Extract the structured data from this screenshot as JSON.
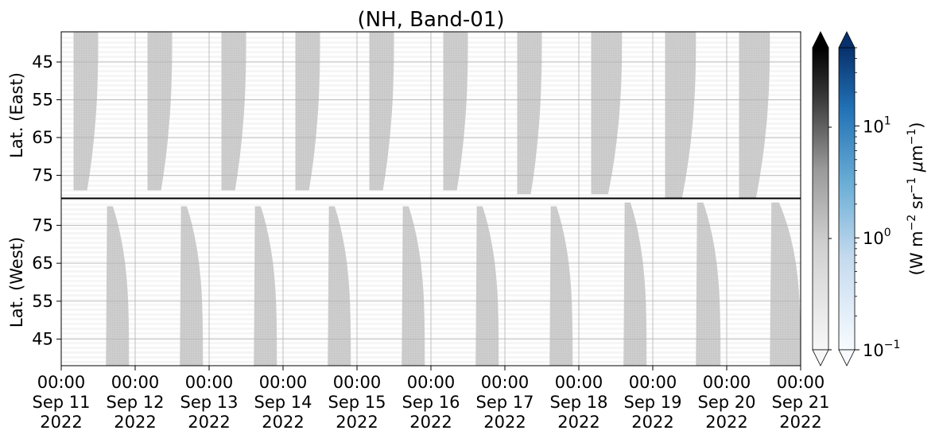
{
  "chart_data": {
    "type": "heatmap",
    "title": "(NH, Band-01)",
    "panels": [
      {
        "name": "east",
        "ylabel": "Lat. (East)",
        "y_ticks": [
          45,
          55,
          65,
          75
        ],
        "ylim": [
          37,
          81
        ],
        "y_inverted": true
      },
      {
        "name": "west",
        "ylabel": "Lat. (West)",
        "y_ticks": [
          75,
          65,
          55,
          45
        ],
        "ylim": [
          38,
          82
        ],
        "y_inverted": false
      }
    ],
    "x_ticks": [
      {
        "time": "00:00",
        "date": "Sep 11",
        "year": "2022"
      },
      {
        "time": "00:00",
        "date": "Sep 12",
        "year": "2022"
      },
      {
        "time": "00:00",
        "date": "Sep 13",
        "year": "2022"
      },
      {
        "time": "00:00",
        "date": "Sep 14",
        "year": "2022"
      },
      {
        "time": "00:00",
        "date": "Sep 15",
        "year": "2022"
      },
      {
        "time": "00:00",
        "date": "Sep 16",
        "year": "2022"
      },
      {
        "time": "00:00",
        "date": "Sep 17",
        "year": "2022"
      },
      {
        "time": "00:00",
        "date": "Sep 18",
        "year": "2022"
      },
      {
        "time": "00:00",
        "date": "Sep 19",
        "year": "2022"
      },
      {
        "time": "00:00",
        "date": "Sep 20",
        "year": "2022"
      },
      {
        "time": "00:00",
        "date": "Sep 21",
        "year": "2022"
      }
    ],
    "xlim": [
      "2022-09-11 00:00",
      "2022-09-21 00:00"
    ],
    "grid": true,
    "east_swaths": [
      {
        "start": "2022-09-11 04:00",
        "end": "2022-09-11 12:00",
        "min_lat": 79
      },
      {
        "start": "2022-09-12 04:00",
        "end": "2022-09-12 12:00",
        "min_lat": 79
      },
      {
        "start": "2022-09-13 04:00",
        "end": "2022-09-13 12:00",
        "min_lat": 79
      },
      {
        "start": "2022-09-14 04:00",
        "end": "2022-09-14 12:00",
        "min_lat": 79
      },
      {
        "start": "2022-09-15 04:00",
        "end": "2022-09-15 12:00",
        "min_lat": 79
      },
      {
        "start": "2022-09-16 04:00",
        "end": "2022-09-16 12:00",
        "min_lat": 79
      },
      {
        "start": "2022-09-17 04:00",
        "end": "2022-09-17 12:00",
        "min_lat": 80
      },
      {
        "start": "2022-09-18 04:00",
        "end": "2022-09-18 14:00",
        "min_lat": 80
      },
      {
        "start": "2022-09-19 04:00",
        "end": "2022-09-19 14:00",
        "min_lat": 81
      },
      {
        "start": "2022-09-20 04:00",
        "end": "2022-09-20 14:00",
        "min_lat": 81
      }
    ],
    "west_swaths": [
      {
        "start": "2022-09-11 14:30",
        "end": "2022-09-11 22:00",
        "max_lat": 80
      },
      {
        "start": "2022-09-12 14:30",
        "end": "2022-09-12 22:00",
        "max_lat": 80
      },
      {
        "start": "2022-09-13 14:30",
        "end": "2022-09-13 22:00",
        "max_lat": 80
      },
      {
        "start": "2022-09-14 14:30",
        "end": "2022-09-14 22:00",
        "max_lat": 80
      },
      {
        "start": "2022-09-15 14:30",
        "end": "2022-09-15 22:00",
        "max_lat": 80
      },
      {
        "start": "2022-09-16 14:30",
        "end": "2022-09-16 22:00",
        "max_lat": 80
      },
      {
        "start": "2022-09-17 14:30",
        "end": "2022-09-17 22:00",
        "max_lat": 80
      },
      {
        "start": "2022-09-18 14:30",
        "end": "2022-09-18 22:00",
        "max_lat": 81
      },
      {
        "start": "2022-09-19 14:00",
        "end": "2022-09-19 22:00",
        "max_lat": 81
      },
      {
        "start": "2022-09-20 14:00",
        "end": "2022-09-21 00:00",
        "max_lat": 81
      }
    ],
    "colorbar": {
      "label": "(W m$^{-2}$ sr$^{-1}$ $\\mu$m$^{-1}$)",
      "scale": "log",
      "range": [
        0.1,
        50
      ],
      "ticks": [
        {
          "value": 10,
          "label": "10",
          "exp": "1"
        },
        {
          "value": 1,
          "label": "10",
          "exp": "0"
        },
        {
          "value": 0.1,
          "label": "10",
          "exp": "−1"
        }
      ],
      "colormaps": [
        "Greys",
        "Blues"
      ],
      "extend": "both"
    }
  }
}
